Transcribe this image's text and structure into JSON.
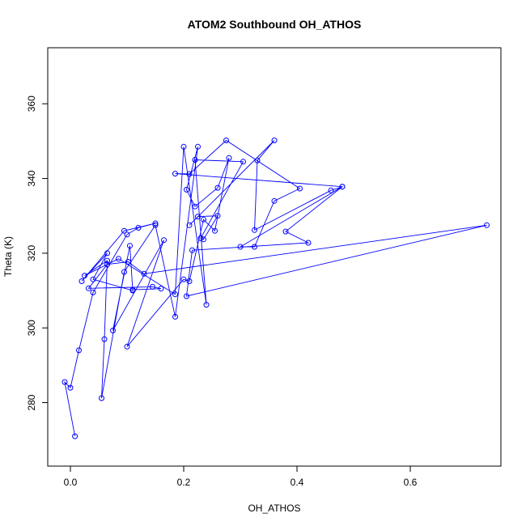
{
  "chart_data": {
    "type": "line",
    "title": "ATOM2 Southbound OH_ATHOS",
    "xlabel": "OH_ATHOS",
    "ylabel": "Theta (K)",
    "xlim": [
      -0.04,
      0.76
    ],
    "ylim": [
      263,
      375
    ],
    "xticks": [
      0.0,
      0.2,
      0.4,
      0.6
    ],
    "xtick_labels": [
      "0.0",
      "0.2",
      "0.4",
      "0.6"
    ],
    "yticks": [
      280,
      300,
      320,
      340,
      360
    ],
    "ytick_labels": [
      "280",
      "300",
      "320",
      "340",
      "360"
    ],
    "grid": false,
    "legend": "none",
    "line_color": "#0000ff",
    "marker": "open-circle",
    "series": [
      {
        "x": [
          0.008,
          -0.01,
          0.0,
          0.015,
          0.04,
          0.1,
          0.12,
          0.15,
          0.095,
          0.02,
          0.065,
          0.04,
          0.11,
          0.105,
          0.075,
          0.165,
          0.1,
          0.2,
          0.21,
          0.235,
          0.255,
          0.28,
          0.26,
          0.22,
          0.205,
          0.225,
          0.185,
          0.15,
          0.095,
          0.055,
          0.06,
          0.065,
          0.025,
          0.085,
          0.185,
          0.2,
          0.24,
          0.22,
          0.305,
          0.23,
          0.235,
          0.26,
          0.225,
          0.21,
          0.36,
          0.33,
          0.325,
          0.46,
          0.48,
          0.3,
          0.325,
          0.36,
          0.405,
          0.275,
          0.21,
          0.185,
          0.48,
          0.38,
          0.42,
          0.215,
          0.205,
          0.735,
          0.13,
          0.102,
          0.065,
          0.032,
          0.145,
          0.16,
          0.11
        ],
        "y": [
          271,
          285.5,
          284,
          294,
          309.5,
          325,
          326.8,
          328,
          326,
          312.5,
          320,
          313,
          310,
          322,
          299.3,
          323.5,
          295,
          313,
          312.5,
          329,
          326,
          345.5,
          337.5,
          332.5,
          337,
          348.5,
          303,
          327.5,
          315,
          281.2,
          297,
          318,
          314,
          318.5,
          309,
          348.5,
          306.2,
          345,
          344.5,
          324,
          323.7,
          330,
          329.8,
          327.5,
          350.2,
          344.8,
          326.2,
          336.8,
          337.8,
          321.7,
          321.7,
          334,
          337.3,
          350.2,
          341.2,
          341.3,
          337.8,
          325.8,
          322.8,
          320.8,
          308.5,
          327.5,
          314.5,
          317.7,
          317,
          310.6,
          311,
          310.5,
          310.2
        ]
      }
    ]
  }
}
